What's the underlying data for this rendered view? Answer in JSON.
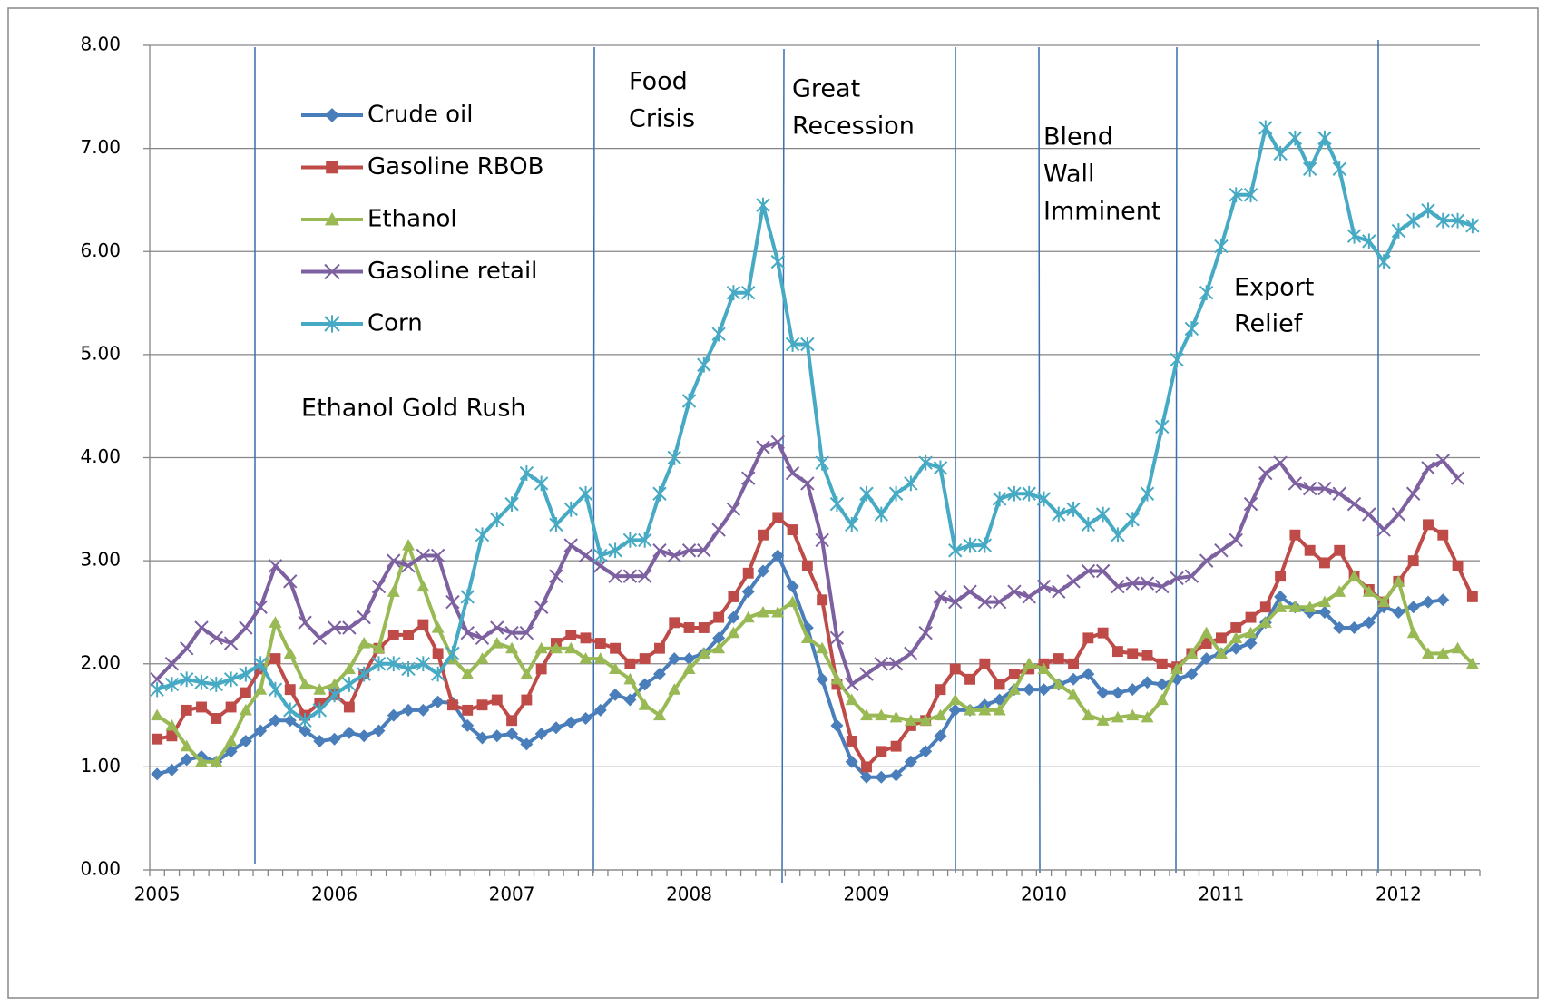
{
  "chart_data": {
    "type": "line",
    "categories": [
      "2005",
      null,
      null,
      null,
      null,
      null,
      null,
      null,
      null,
      null,
      null,
      null,
      "2006",
      null,
      null,
      null,
      null,
      null,
      null,
      null,
      null,
      null,
      null,
      null,
      "2007",
      null,
      null,
      null,
      null,
      null,
      null,
      null,
      null,
      null,
      null,
      null,
      "2008",
      null,
      null,
      null,
      null,
      null,
      null,
      null,
      null,
      null,
      null,
      null,
      "2009",
      null,
      null,
      null,
      null,
      null,
      null,
      null,
      null,
      null,
      null,
      null,
      "2010",
      null,
      null,
      null,
      null,
      null,
      null,
      null,
      null,
      null,
      null,
      null,
      "2011",
      null,
      null,
      null,
      null,
      null,
      null,
      null,
      null,
      null,
      null,
      null,
      "2012",
      null,
      null,
      null,
      null,
      null
    ],
    "ylim": [
      0,
      8
    ],
    "yticks": [
      {
        "value": 0,
        "label": "0.00"
      },
      {
        "value": 1,
        "label": "1.00"
      },
      {
        "value": 2,
        "label": "2.00"
      },
      {
        "value": 3,
        "label": "3.00"
      },
      {
        "value": 4,
        "label": "4.00"
      },
      {
        "value": 5,
        "label": "5.00"
      },
      {
        "value": 6,
        "label": "6.00"
      },
      {
        "value": 7,
        "label": "7.00"
      },
      {
        "value": 8,
        "label": "8.00"
      }
    ],
    "grid": true,
    "legend": "upper-left",
    "annotations": [
      [
        "Ethanol Gold Rush"
      ],
      [
        "Food",
        "Crisis"
      ],
      [
        "Great",
        "Recession"
      ],
      [
        "Blend",
        "Wall",
        "Imminent"
      ],
      [
        "Export",
        "Relief"
      ]
    ],
    "series": [
      {
        "name": "Crude oil",
        "color": "#4a7ebb",
        "marker": "diamond",
        "values": [
          0.93,
          0.97,
          1.07,
          1.1,
          1.05,
          1.15,
          1.25,
          1.35,
          1.45,
          1.45,
          1.35,
          1.25,
          1.27,
          1.33,
          1.3,
          1.35,
          1.5,
          1.55,
          1.55,
          1.63,
          1.62,
          1.4,
          1.28,
          1.3,
          1.32,
          1.22,
          1.32,
          1.38,
          1.43,
          1.47,
          1.55,
          1.7,
          1.65,
          1.8,
          1.9,
          2.05,
          2.05,
          2.1,
          2.25,
          2.45,
          2.7,
          2.9,
          3.05,
          2.75,
          2.35,
          1.85,
          1.4,
          1.05,
          0.9,
          0.9,
          0.92,
          1.05,
          1.15,
          1.3,
          1.55,
          1.55,
          1.6,
          1.65,
          1.75,
          1.75,
          1.75,
          1.8,
          1.85,
          1.9,
          1.72,
          1.72,
          1.75,
          1.82,
          1.8,
          1.85,
          1.9,
          2.05,
          2.1,
          2.15,
          2.2,
          2.4,
          2.65,
          2.55,
          2.5,
          2.5,
          2.35,
          2.35,
          2.4,
          2.55,
          2.5,
          2.55,
          2.6,
          2.62,
          null,
          null
        ]
      },
      {
        "name": "Gasoline RBOB",
        "color": "#be4b48",
        "marker": "square",
        "values": [
          1.27,
          1.3,
          1.55,
          1.58,
          1.47,
          1.58,
          1.72,
          1.95,
          2.05,
          1.75,
          1.5,
          1.62,
          1.7,
          1.58,
          1.9,
          2.15,
          2.28,
          2.28,
          2.38,
          2.1,
          1.6,
          1.55,
          1.6,
          1.65,
          1.45,
          1.65,
          1.95,
          2.2,
          2.28,
          2.25,
          2.2,
          2.15,
          2.0,
          2.05,
          2.15,
          2.4,
          2.35,
          2.35,
          2.45,
          2.65,
          2.88,
          3.25,
          3.42,
          3.3,
          2.95,
          2.62,
          1.8,
          1.25,
          1.0,
          1.15,
          1.2,
          1.4,
          1.45,
          1.75,
          1.95,
          1.85,
          2.0,
          1.8,
          1.9,
          1.95,
          2.0,
          2.05,
          2.0,
          2.25,
          2.3,
          2.12,
          2.1,
          2.08,
          2.0,
          1.97,
          2.1,
          2.2,
          2.25,
          2.35,
          2.45,
          2.55,
          2.85,
          3.25,
          3.1,
          2.98,
          3.1,
          2.85,
          2.72,
          2.6,
          2.8,
          3.0,
          3.35,
          3.25,
          2.95,
          2.65
        ]
      },
      {
        "name": "Ethanol",
        "color": "#98b954",
        "marker": "triangle",
        "values": [
          1.5,
          1.4,
          1.2,
          1.05,
          1.05,
          1.25,
          1.55,
          1.75,
          2.4,
          2.1,
          1.8,
          1.75,
          1.8,
          1.95,
          2.2,
          2.15,
          2.7,
          3.15,
          2.75,
          2.35,
          2.05,
          1.9,
          2.05,
          2.2,
          2.15,
          1.9,
          2.15,
          2.15,
          2.15,
          2.05,
          2.05,
          1.95,
          1.85,
          1.6,
          1.5,
          1.75,
          1.95,
          2.1,
          2.15,
          2.3,
          2.45,
          2.5,
          2.5,
          2.6,
          2.25,
          2.15,
          1.85,
          1.65,
          1.5,
          1.5,
          1.48,
          1.45,
          1.45,
          1.5,
          1.65,
          1.55,
          1.55,
          1.55,
          1.75,
          2.0,
          1.95,
          1.8,
          1.7,
          1.5,
          1.45,
          1.48,
          1.5,
          1.48,
          1.65,
          1.95,
          2.1,
          2.3,
          2.1,
          2.25,
          2.3,
          2.4,
          2.55,
          2.55,
          2.55,
          2.6,
          2.7,
          2.85,
          2.7,
          2.6,
          2.8,
          2.3,
          2.1,
          2.1,
          2.15,
          2.0
        ]
      },
      {
        "name": "Gasoline retail",
        "color": "#7d60a0",
        "marker": "x",
        "values": [
          1.85,
          2.0,
          2.15,
          2.35,
          2.25,
          2.2,
          2.35,
          2.55,
          2.95,
          2.8,
          2.4,
          2.25,
          2.35,
          2.35,
          2.45,
          2.75,
          3.0,
          2.95,
          3.05,
          3.05,
          2.6,
          2.3,
          2.25,
          2.35,
          2.3,
          2.3,
          2.55,
          2.85,
          3.15,
          3.05,
          2.95,
          2.85,
          2.85,
          2.85,
          3.1,
          3.05,
          3.1,
          3.1,
          3.3,
          3.5,
          3.8,
          4.1,
          4.15,
          3.85,
          3.75,
          3.2,
          2.25,
          1.8,
          1.9,
          2.0,
          2.0,
          2.1,
          2.3,
          2.65,
          2.6,
          2.7,
          2.6,
          2.6,
          2.7,
          2.65,
          2.75,
          2.7,
          2.8,
          2.9,
          2.9,
          2.75,
          2.78,
          2.78,
          2.75,
          2.83,
          2.85,
          3.0,
          3.1,
          3.2,
          3.55,
          3.85,
          3.95,
          3.75,
          3.7,
          3.7,
          3.65,
          3.55,
          3.45,
          3.3,
          3.45,
          3.65,
          3.9,
          3.97,
          3.8,
          null
        ]
      },
      {
        "name": "Corn",
        "color": "#46aac5",
        "marker": "star",
        "values": [
          1.75,
          1.8,
          1.85,
          1.82,
          1.8,
          1.85,
          1.9,
          2.0,
          1.75,
          1.55,
          1.45,
          1.55,
          1.7,
          1.8,
          1.9,
          2.0,
          2.0,
          1.95,
          2.0,
          1.9,
          2.1,
          2.65,
          3.25,
          3.4,
          3.55,
          3.85,
          3.75,
          3.35,
          3.5,
          3.65,
          3.05,
          3.1,
          3.2,
          3.2,
          3.65,
          4.0,
          4.55,
          4.9,
          5.2,
          5.6,
          5.6,
          6.45,
          5.9,
          5.1,
          5.1,
          3.95,
          3.55,
          3.35,
          3.65,
          3.45,
          3.65,
          3.75,
          3.95,
          3.9,
          3.1,
          3.15,
          3.15,
          3.6,
          3.65,
          3.65,
          3.6,
          3.45,
          3.5,
          3.35,
          3.45,
          3.25,
          3.4,
          3.65,
          4.3,
          4.95,
          5.25,
          5.6,
          6.05,
          6.55,
          6.55,
          7.2,
          6.95,
          7.1,
          6.8,
          7.1,
          6.8,
          6.15,
          6.1,
          5.9,
          6.2,
          6.3,
          6.4,
          6.3,
          6.3,
          6.25
        ]
      }
    ]
  }
}
